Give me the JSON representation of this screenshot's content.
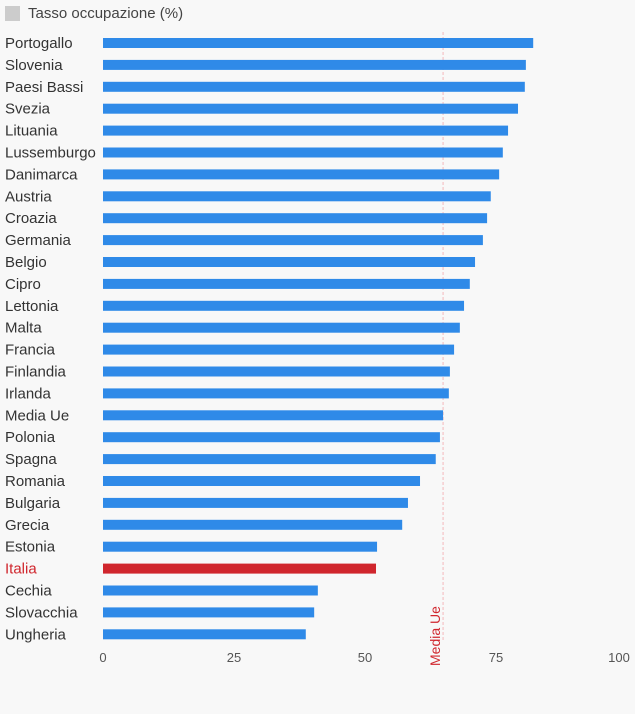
{
  "chart_data": {
    "type": "bar",
    "orientation": "horizontal",
    "title": "",
    "legend": [
      {
        "label": "Tasso occupazione (%)",
        "color": "#cccccc"
      }
    ],
    "legend_position": "top-left",
    "categories": [
      "Portogallo",
      "Slovenia",
      "Paesi Bassi",
      "Svezia",
      "Lituania",
      "Lussemburgo",
      "Danimarca",
      "Austria",
      "Croazia",
      "Germania",
      "Belgio",
      "Cipro",
      "Lettonia",
      "Malta",
      "Francia",
      "Finlandia",
      "Irlanda",
      "Media Ue",
      "Polonia",
      "Spagna",
      "Romania",
      "Bulgaria",
      "Grecia",
      "Estonia",
      "Italia",
      "Cechia",
      "Slovacchia",
      "Ungheria"
    ],
    "values": [
      82.1,
      80.7,
      80.5,
      79.2,
      77.3,
      76.3,
      75.6,
      74.0,
      73.3,
      72.5,
      71.0,
      70.0,
      68.9,
      68.1,
      67.0,
      66.2,
      66.0,
      64.9,
      64.3,
      63.5,
      60.5,
      58.2,
      57.1,
      52.3,
      52.1,
      41.0,
      40.3,
      38.7
    ],
    "highlight": {
      "category": "Italia",
      "color": "#d0262d"
    },
    "bar_color": "#2f8ae8",
    "xlim": [
      0,
      100
    ],
    "xticks": [
      0,
      25,
      50,
      75,
      100
    ],
    "xlabel": "",
    "ylabel": "",
    "grid": false,
    "reference_line": {
      "label": "Media Ue",
      "value": 64.9,
      "color": "#d0262d"
    }
  }
}
